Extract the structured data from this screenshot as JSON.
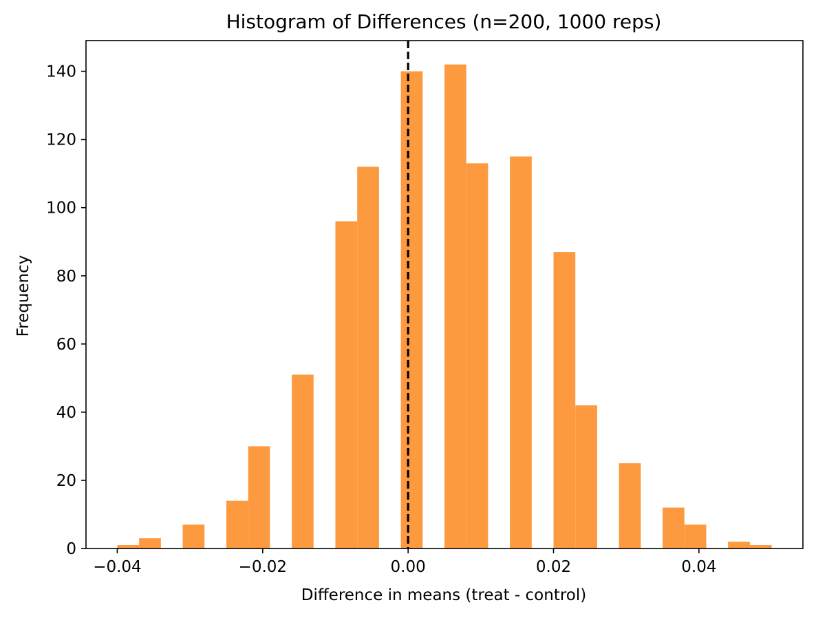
{
  "chart_data": {
    "type": "bar",
    "title": "Histogram of Differences (n=200, 1000 reps)",
    "xlabel": "Difference in means (treat - control)",
    "ylabel": "Frequency",
    "xlim": [
      -0.0443,
      0.0543
    ],
    "ylim": [
      0,
      149
    ],
    "xticks": [
      -0.04,
      -0.02,
      0.0,
      0.02,
      0.04
    ],
    "xtick_labels": [
      "−0.04",
      "−0.02",
      "0.00",
      "0.02",
      "0.04"
    ],
    "yticks": [
      0,
      20,
      40,
      60,
      80,
      100,
      120,
      140
    ],
    "ytick_labels": [
      "0",
      "20",
      "40",
      "60",
      "80",
      "100",
      "120",
      "140"
    ],
    "bar_color": "#fd9a40",
    "bins": [
      {
        "x0": -0.04,
        "x1": -0.037,
        "count": 1
      },
      {
        "x0": -0.037,
        "x1": -0.034,
        "count": 3
      },
      {
        "x0": -0.031,
        "x1": -0.028,
        "count": 7
      },
      {
        "x0": -0.025,
        "x1": -0.022,
        "count": 14
      },
      {
        "x0": -0.022,
        "x1": -0.019,
        "count": 30
      },
      {
        "x0": -0.016,
        "x1": -0.013,
        "count": 51
      },
      {
        "x0": -0.01,
        "x1": -0.007,
        "count": 96
      },
      {
        "x0": -0.007,
        "x1": -0.004,
        "count": 112
      },
      {
        "x0": -0.001,
        "x1": 0.002,
        "count": 140
      },
      {
        "x0": 0.005,
        "x1": 0.008,
        "count": 142
      },
      {
        "x0": 0.008,
        "x1": 0.011,
        "count": 113
      },
      {
        "x0": 0.014,
        "x1": 0.017,
        "count": 115
      },
      {
        "x0": 0.02,
        "x1": 0.023,
        "count": 87
      },
      {
        "x0": 0.023,
        "x1": 0.026,
        "count": 42
      },
      {
        "x0": 0.029,
        "x1": 0.032,
        "count": 25
      },
      {
        "x0": 0.035,
        "x1": 0.038,
        "count": 12
      },
      {
        "x0": 0.038,
        "x1": 0.041,
        "count": 7
      },
      {
        "x0": 0.044,
        "x1": 0.047,
        "count": 2
      },
      {
        "x0": 0.047,
        "x1": 0.05,
        "count": 1
      }
    ],
    "vline": {
      "x": 0.0,
      "style": "dashed",
      "color": "#000000"
    },
    "grid": false,
    "legend": "none"
  }
}
